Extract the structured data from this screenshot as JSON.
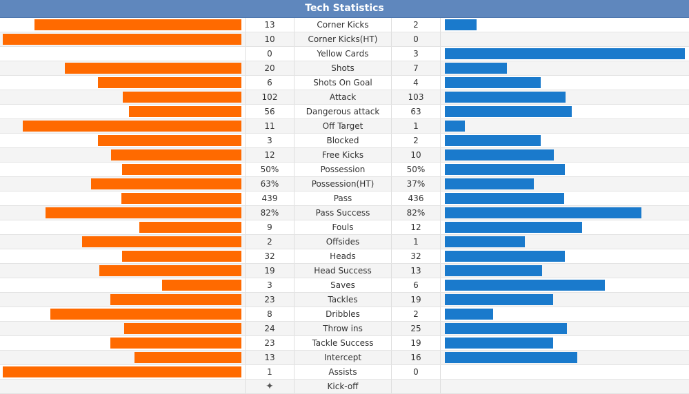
{
  "header": {
    "title": "Tech Statistics"
  },
  "colors": {
    "home": "#ff6a00",
    "away": "#1a7acc",
    "header_bg": "#5f87bd"
  },
  "stats": [
    {
      "label": "Corner Kicks",
      "home": "13",
      "away": "2",
      "home_fill": 0.867,
      "away_fill": 0.133
    },
    {
      "label": "Corner Kicks(HT)",
      "home": "10",
      "away": "0",
      "home_fill": 1.0,
      "away_fill": 0.0
    },
    {
      "label": "Yellow Cards",
      "home": "0",
      "away": "3",
      "home_fill": 0.0,
      "away_fill": 1.0
    },
    {
      "label": "Shots",
      "home": "20",
      "away": "7",
      "home_fill": 0.741,
      "away_fill": 0.259
    },
    {
      "label": "Shots On Goal",
      "home": "6",
      "away": "4",
      "home_fill": 0.6,
      "away_fill": 0.4
    },
    {
      "label": "Attack",
      "home": "102",
      "away": "103",
      "home_fill": 0.498,
      "away_fill": 0.502
    },
    {
      "label": "Dangerous attack",
      "home": "56",
      "away": "63",
      "home_fill": 0.471,
      "away_fill": 0.529
    },
    {
      "label": "Off Target",
      "home": "11",
      "away": "1",
      "home_fill": 0.917,
      "away_fill": 0.083
    },
    {
      "label": "Blocked",
      "home": "3",
      "away": "2",
      "home_fill": 0.6,
      "away_fill": 0.4
    },
    {
      "label": "Free Kicks",
      "home": "12",
      "away": "10",
      "home_fill": 0.545,
      "away_fill": 0.455
    },
    {
      "label": "Possession",
      "home": "50%",
      "away": "50%",
      "home_fill": 0.5,
      "away_fill": 0.5
    },
    {
      "label": "Possession(HT)",
      "home": "63%",
      "away": "37%",
      "home_fill": 0.63,
      "away_fill": 0.37
    },
    {
      "label": "Pass",
      "home": "439",
      "away": "436",
      "home_fill": 0.502,
      "away_fill": 0.498
    },
    {
      "label": "Pass Success",
      "home": "82%",
      "away": "82%",
      "home_fill": 0.82,
      "away_fill": 0.82
    },
    {
      "label": "Fouls",
      "home": "9",
      "away": "12",
      "home_fill": 0.429,
      "away_fill": 0.571
    },
    {
      "label": "Offsides",
      "home": "2",
      "away": "1",
      "home_fill": 0.667,
      "away_fill": 0.333
    },
    {
      "label": "Heads",
      "home": "32",
      "away": "32",
      "home_fill": 0.5,
      "away_fill": 0.5
    },
    {
      "label": "Head Success",
      "home": "19",
      "away": "13",
      "home_fill": 0.594,
      "away_fill": 0.406
    },
    {
      "label": "Saves",
      "home": "3",
      "away": "6",
      "home_fill": 0.333,
      "away_fill": 0.667
    },
    {
      "label": "Tackles",
      "home": "23",
      "away": "19",
      "home_fill": 0.548,
      "away_fill": 0.452
    },
    {
      "label": "Dribbles",
      "home": "8",
      "away": "2",
      "home_fill": 0.8,
      "away_fill": 0.2
    },
    {
      "label": "Throw ins",
      "home": "24",
      "away": "25",
      "home_fill": 0.49,
      "away_fill": 0.51
    },
    {
      "label": "Tackle Success",
      "home": "23",
      "away": "19",
      "home_fill": 0.548,
      "away_fill": 0.452
    },
    {
      "label": "Intercept",
      "home": "13",
      "away": "16",
      "home_fill": 0.448,
      "away_fill": 0.552
    },
    {
      "label": "Assists",
      "home": "1",
      "away": "0",
      "home_fill": 1.0,
      "away_fill": 0.0
    }
  ],
  "kickoff": {
    "label": "Kick-off",
    "icon": "kickoff-star-icon"
  }
}
